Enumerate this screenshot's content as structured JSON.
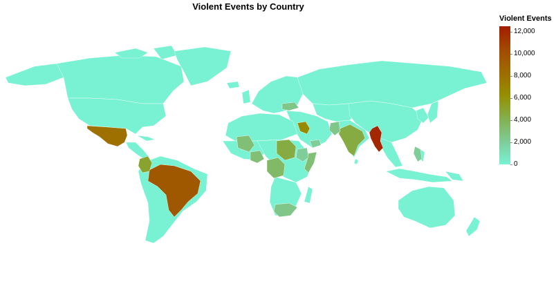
{
  "title": "Violent Events by Country",
  "legend": {
    "title": "Violent Events",
    "ticks": [
      {
        "value": 12000,
        "label": "12,000"
      },
      {
        "value": 10000,
        "label": "10,000"
      },
      {
        "value": 8000,
        "label": "8,000"
      },
      {
        "value": 6000,
        "label": "6,000"
      },
      {
        "value": 4000,
        "label": "4,000"
      },
      {
        "value": 2000,
        "label": "2,000"
      },
      {
        "value": 0,
        "label": "0"
      }
    ],
    "domain": [
      0,
      12500
    ],
    "colors": [
      "#78f2d3",
      "#7fcb96",
      "#83b04f",
      "#958f00",
      "#9e6a00",
      "#a24a00",
      "#a31c00"
    ]
  },
  "chart_data": {
    "type": "choropleth",
    "color_scale": {
      "min": 0,
      "max": 12500,
      "low_color": "#78f2d3",
      "high_color": "#a31c00"
    },
    "regions": [
      {
        "id": "myanmar",
        "value": 12000
      },
      {
        "id": "brazil",
        "value": 9500
      },
      {
        "id": "mexico",
        "value": 8000
      },
      {
        "id": "iraq",
        "value": 6500
      },
      {
        "id": "colombia",
        "value": 5000
      },
      {
        "id": "india",
        "value": 4500
      },
      {
        "id": "sudan",
        "value": 4500
      },
      {
        "id": "dr-congo",
        "value": 3500
      },
      {
        "id": "nigeria",
        "value": 3000
      },
      {
        "id": "mali",
        "value": 3000
      },
      {
        "id": "somalia",
        "value": 3000
      },
      {
        "id": "south-africa",
        "value": 2500
      },
      {
        "id": "ukraine",
        "value": 2500
      },
      {
        "id": "ethiopia",
        "value": 2000
      },
      {
        "id": "pakistan",
        "value": 2500
      },
      {
        "id": "yemen",
        "value": 2000
      },
      {
        "id": "philippines",
        "value": 2000
      }
    ]
  }
}
